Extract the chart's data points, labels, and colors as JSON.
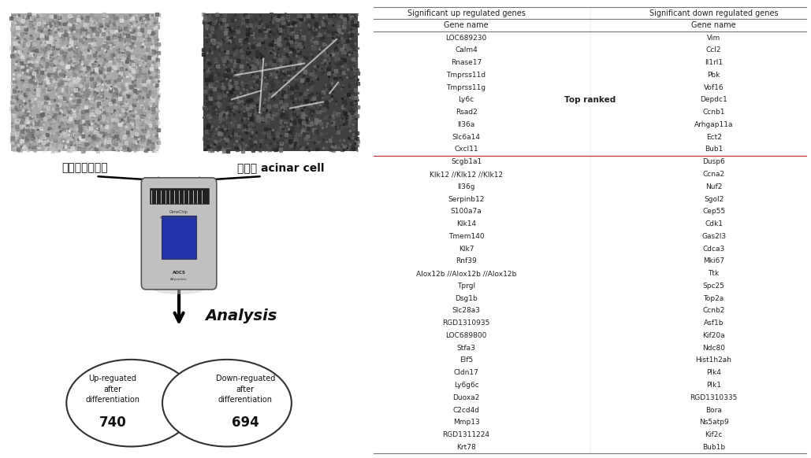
{
  "up_genes": [
    "LOC689230",
    "Calm4",
    "Rnase17",
    "Tmprss11d",
    "Tmprss11g",
    "Ly6c",
    "Rsad2",
    "Il36a",
    "Slc6a14",
    "Cxcl11",
    "Scgb1a1",
    "Klk12 //Klk12 //Klk12",
    "Il36g",
    "Serpinb12",
    "S100a7a",
    "Klk14",
    "Tmem140",
    "Klk7",
    "Rnf39",
    "Alox12b //Alox12b //Alox12b",
    "Tprgl",
    "Dsg1b",
    "Slc28a3",
    "RGD1310935",
    "LOC689800",
    "Stfa3",
    "Elf5",
    "Cldn17",
    "Ly6g6c",
    "Duoxa2",
    "C2cd4d",
    "Mmp13",
    "RGD1311224",
    "Krt78"
  ],
  "down_genes": [
    "Vim",
    "Ccl2",
    "Il1rl1",
    "Pbk",
    "Vof16",
    "Depdc1",
    "Ccnb1",
    "Arhgap11a",
    "Ect2",
    "Bub1",
    "Dusp6",
    "Ccna2",
    "Nuf2",
    "Sgol2",
    "Cep55",
    "Cdk1",
    "Gas2l3",
    "Cdca3",
    "Mki67",
    "Ttk",
    "Spc25",
    "Top2a",
    "Ccnb2",
    "Asf1b",
    "Kif20a",
    "Ndc80",
    "Hist1h2ah",
    "Plk4",
    "Plk1",
    "RGD1310335",
    "Bora",
    "Ns5atp9",
    "Kif2c",
    "Bub1b"
  ],
  "header_up": "Significant up regulated genes",
  "header_down": "Significant down regulated genes",
  "col_header": "Gene name",
  "top_ranked_label": "Top ranked",
  "up_label": "내배엽줄기세포",
  "down_label": "분화된 acinar cell",
  "analysis_label": "Analysis",
  "venn_left_text": "Up-reguated\nafter\ndifferentiation",
  "venn_right_text": "Down-reguated\nafter\ndifferentiation",
  "venn_left_num": "740",
  "venn_right_num": "694",
  "bg_color": "#ffffff",
  "table_text_color": "#222222",
  "header_line_color": "#777777",
  "pink_line_color": "#bb3333",
  "font_size_header": 7.0,
  "font_size_gene": 6.5,
  "img1_colors": [
    "#484848",
    "#686868",
    "#787878",
    "#888888",
    "#989898",
    "#a8a8a8",
    "#b8b8b8",
    "#c8c8c8",
    "#d0d0d0"
  ],
  "img2_colors": [
    "#282828",
    "#383838",
    "#484848",
    "#585858",
    "#686868",
    "#787878",
    "#888888",
    "#a0a0a0",
    "#c0c0c0"
  ]
}
